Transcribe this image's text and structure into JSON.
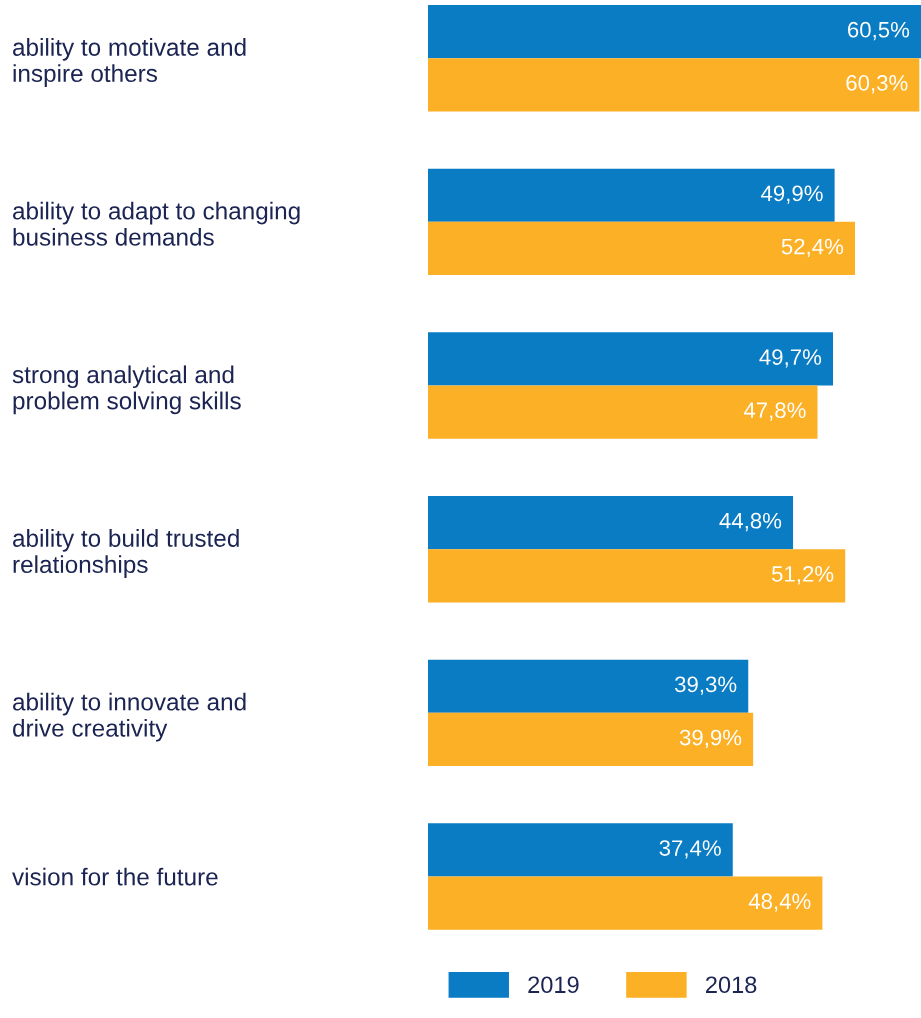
{
  "chart_data": {
    "type": "bar",
    "orientation": "horizontal",
    "categories": [
      "ability to motivate and\ninspire others",
      "ability to adapt to changing\nbusiness demands",
      "strong analytical and\nproblem solving skills",
      "ability to build trusted\nrelationships",
      "ability to innovate and\ndrive creativity",
      "vision for the future"
    ],
    "series": [
      {
        "name": "2019",
        "color": "#0a7cc4",
        "values": [
          60.5,
          49.9,
          49.7,
          44.8,
          39.3,
          37.4
        ],
        "value_labels": [
          "60,5%",
          "49,9%",
          "49,7%",
          "44,8%",
          "39,3%",
          "37,4%"
        ]
      },
      {
        "name": "2018",
        "color": "#fbb026",
        "values": [
          60.3,
          52.4,
          47.8,
          51.2,
          39.9,
          48.4
        ],
        "value_labels": [
          "60,3%",
          "52,4%",
          "47,8%",
          "51,2%",
          "39,9%",
          "48,4%"
        ]
      }
    ],
    "xlim": [
      0,
      60.5
    ],
    "tick_labels": "y",
    "legend": "bottom left"
  }
}
